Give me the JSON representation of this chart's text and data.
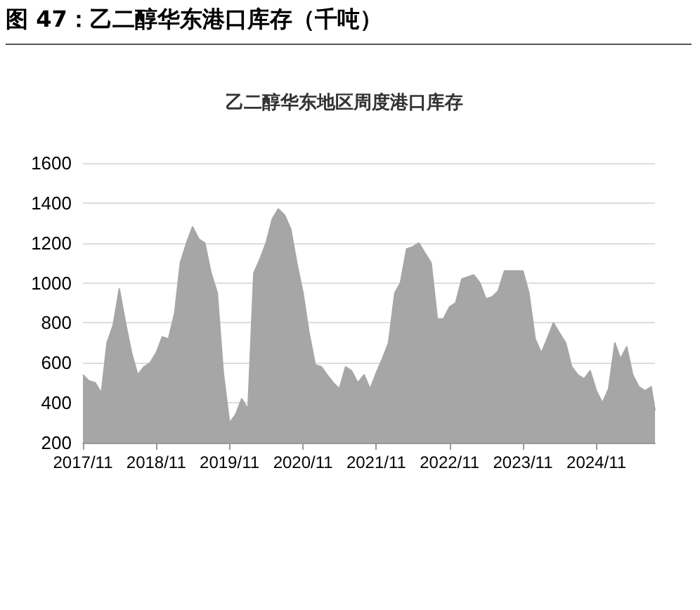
{
  "chart_data": {
    "type": "area",
    "title": "图 47：乙二醇华东港口库存（千吨）",
    "subtitle": "乙二醇华东地区周度港口库存",
    "x": [
      "2017-11",
      "2017-12",
      "2018-01",
      "2018-02",
      "2018-03",
      "2018-04",
      "2018-05",
      "2018-06",
      "2018-07",
      "2018-08",
      "2018-09",
      "2018-10",
      "2018-11",
      "2018-12",
      "2019-01",
      "2019-02",
      "2019-03",
      "2019-04",
      "2019-05",
      "2019-06",
      "2019-07",
      "2019-08",
      "2019-09",
      "2019-10",
      "2019-11",
      "2019-12",
      "2020-01",
      "2020-02",
      "2020-03",
      "2020-04",
      "2020-05",
      "2020-06",
      "2020-07",
      "2020-08",
      "2020-09",
      "2020-10",
      "2020-11",
      "2020-12",
      "2021-01",
      "2021-02",
      "2021-03",
      "2021-04",
      "2021-05",
      "2021-06",
      "2021-07",
      "2021-08",
      "2021-09",
      "2021-10",
      "2021-11",
      "2021-12",
      "2022-01",
      "2022-02",
      "2022-03",
      "2022-04",
      "2022-05",
      "2022-06",
      "2022-07",
      "2022-08",
      "2022-09",
      "2022-10",
      "2022-11",
      "2022-12",
      "2023-01",
      "2023-02",
      "2023-03",
      "2023-04",
      "2023-05",
      "2023-06",
      "2023-07",
      "2023-08",
      "2023-09",
      "2023-10",
      "2023-11",
      "2023-12",
      "2024-01",
      "2024-02",
      "2024-03",
      "2024-04",
      "2024-05",
      "2024-06",
      "2024-07",
      "2024-08",
      "2024-09",
      "2024-10",
      "2024-11",
      "2024-12",
      "2025-01",
      "2025-02",
      "2025-03",
      "2025-04",
      "2025-05",
      "2025-06",
      "2025-07",
      "2025-08",
      "2025-08-20"
    ],
    "series": [
      {
        "color": "#a6a6a6",
        "values": [
          540,
          510,
          500,
          450,
          700,
          790,
          970,
          800,
          650,
          540,
          580,
          600,
          650,
          730,
          720,
          850,
          1100,
          1200,
          1280,
          1220,
          1200,
          1050,
          950,
          550,
          300,
          340,
          420,
          370,
          1050,
          1120,
          1200,
          1320,
          1370,
          1340,
          1270,
          1100,
          950,
          750,
          590,
          580,
          540,
          500,
          470,
          580,
          560,
          500,
          540,
          470,
          550,
          620,
          700,
          950,
          1000,
          1170,
          1180,
          1200,
          1150,
          1100,
          820,
          820,
          880,
          900,
          1020,
          1030,
          1040,
          1000,
          920,
          930,
          960,
          1060,
          1060,
          1060,
          1060,
          950,
          720,
          650,
          720,
          800,
          750,
          700,
          580,
          540,
          520,
          560,
          460,
          400,
          470,
          700,
          620,
          680,
          540,
          480,
          460,
          480,
          360
        ]
      }
    ],
    "xlim": [
      "2017-11",
      "2025-08-20"
    ],
    "xticks": [
      {
        "value": "2017-11",
        "label": "2017/11"
      },
      {
        "value": "2018-11",
        "label": "2018/11"
      },
      {
        "value": "2019-11",
        "label": "2019/11"
      },
      {
        "value": "2020-11",
        "label": "2020/11"
      },
      {
        "value": "2021-11",
        "label": "2021/11"
      },
      {
        "value": "2022-11",
        "label": "2022/11"
      },
      {
        "value": "2023-11",
        "label": "2023/11"
      },
      {
        "value": "2024-11",
        "label": "2024/11"
      }
    ],
    "ylim": [
      200,
      1600
    ],
    "yticks": [
      200,
      400,
      600,
      800,
      1000,
      1200,
      1400,
      1600
    ],
    "grid": "y",
    "marker": "none",
    "line_style": "solid"
  }
}
